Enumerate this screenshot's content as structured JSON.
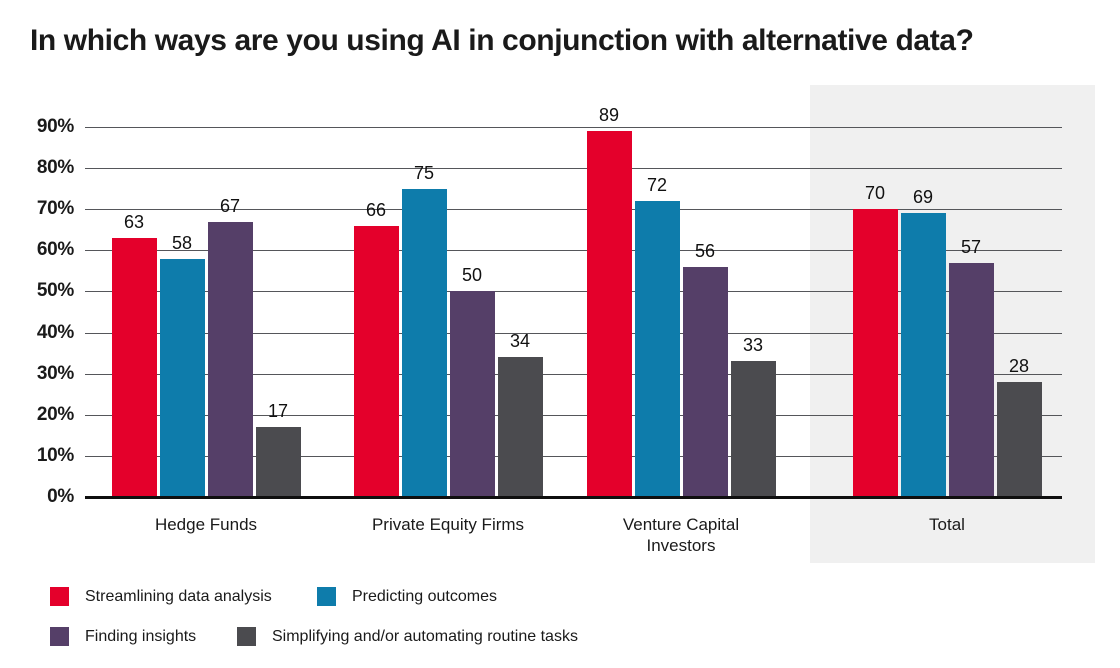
{
  "chart_data": {
    "type": "bar",
    "title": "In which ways are you using AI in conjunction with alternative data?",
    "categories": [
      "Hedge Funds",
      "Private Equity Firms",
      "Venture Capital Investors",
      "Total"
    ],
    "series": [
      {
        "name": "Streamlining data analysis",
        "color": "#e4002b",
        "values": [
          63,
          66,
          89,
          70
        ]
      },
      {
        "name": "Predicting outcomes",
        "color": "#0e7cab",
        "values": [
          58,
          75,
          72,
          69
        ]
      },
      {
        "name": "Finding insights",
        "color": "#553f68",
        "values": [
          67,
          50,
          56,
          57
        ]
      },
      {
        "name": "Simplifying and/or automating routine tasks",
        "color": "#4b4b4f",
        "values": [
          17,
          34,
          33,
          28
        ]
      }
    ],
    "ylim": [
      0,
      90
    ],
    "ytick_step": 10,
    "ytick_labels": [
      "0%",
      "10%",
      "20%",
      "30%",
      "40%",
      "50%",
      "60%",
      "70%",
      "80%",
      "90%"
    ],
    "grid": true,
    "legend_position": "bottom-left",
    "highlighted_category": "Total",
    "highlight_color": "#f0f0f0",
    "gridline_color": "#55565a",
    "axis_line_color": "#0f0f0f"
  }
}
